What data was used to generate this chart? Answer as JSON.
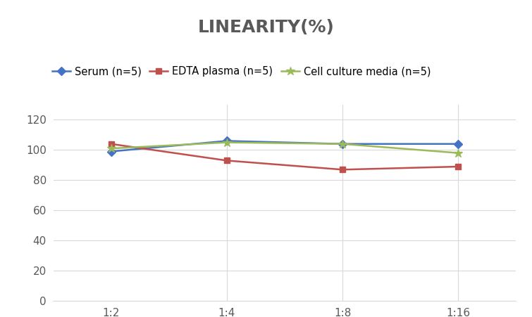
{
  "title": "LINEARITY(%)",
  "x_labels": [
    "1:2",
    "1:4",
    "1:8",
    "1:16"
  ],
  "x_positions": [
    0,
    1,
    2,
    3
  ],
  "series": [
    {
      "label": "Serum (n=5)",
      "values": [
        99,
        106,
        104,
        104
      ],
      "color": "#4472C4",
      "marker": "D",
      "linewidth": 1.8,
      "markersize": 6
    },
    {
      "label": "EDTA plasma (n=5)",
      "values": [
        104,
        93,
        87,
        89
      ],
      "color": "#C0504D",
      "marker": "s",
      "linewidth": 1.8,
      "markersize": 6
    },
    {
      "label": "Cell culture media (n=5)",
      "values": [
        101,
        105,
        104,
        98
      ],
      "color": "#9BBB59",
      "marker": "*",
      "linewidth": 1.8,
      "markersize": 9
    }
  ],
  "ylim": [
    0,
    130
  ],
  "yticks": [
    0,
    20,
    40,
    60,
    80,
    100,
    120
  ],
  "background_color": "#ffffff",
  "title_fontsize": 18,
  "title_color": "#595959",
  "legend_fontsize": 10.5,
  "tick_fontsize": 11,
  "grid_color": "#d9d9d9",
  "spine_color": "#d9d9d9"
}
